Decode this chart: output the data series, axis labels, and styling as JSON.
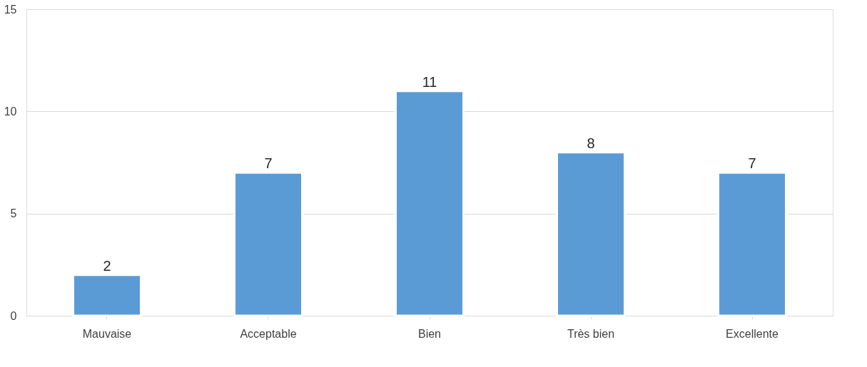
{
  "chart_data": {
    "type": "bar",
    "categories": [
      "Mauvaise",
      "Acceptable",
      "Bien",
      "Très bien",
      "Excellente"
    ],
    "values": [
      2,
      7,
      11,
      8,
      7
    ],
    "color": "#5b9bd5",
    "ylim": [
      0,
      15
    ],
    "yticks": [
      0,
      5,
      10,
      15
    ],
    "grid": "y",
    "data_labels": true
  }
}
